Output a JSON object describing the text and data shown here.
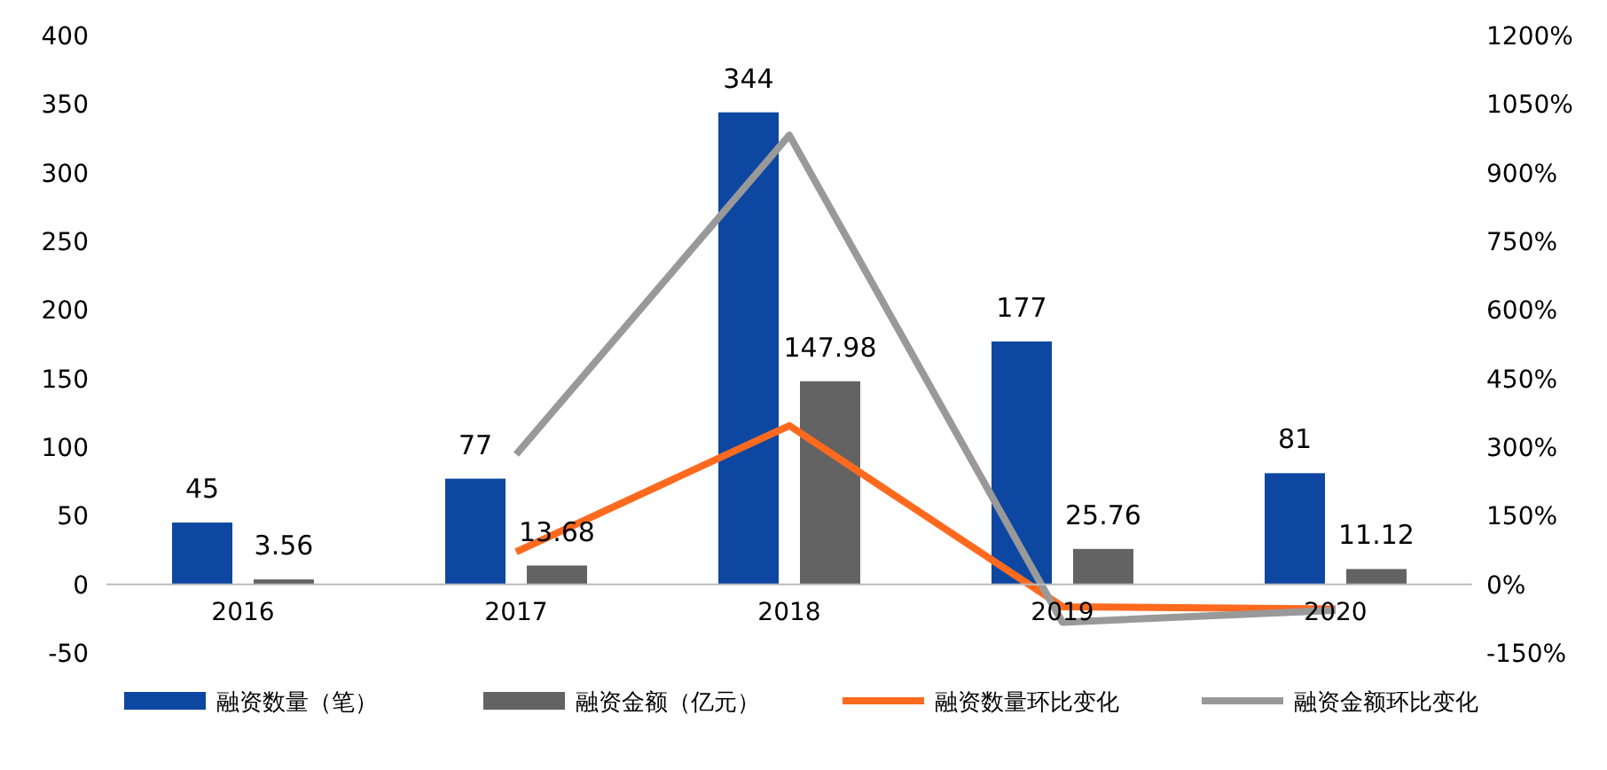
{
  "chart_data": {
    "type": "bar",
    "categories": [
      "2016",
      "2017",
      "2018",
      "2019",
      "2020"
    ],
    "series": [
      {
        "name": "融资数量（笔）",
        "color": "#0d47a1",
        "values": [
          45,
          77,
          344,
          177,
          81
        ],
        "value_labels": [
          "45",
          "77",
          "344",
          "177",
          "81"
        ]
      },
      {
        "name": "融资金额（亿元）",
        "color": "#636363",
        "values": [
          3.56,
          13.68,
          147.98,
          25.76,
          11.12
        ],
        "value_labels": [
          "3.56",
          "13.68",
          "147.98",
          "25.76",
          "11.12"
        ]
      },
      {
        "name": "融资数量环比变化",
        "type": "line",
        "axis": "y2",
        "color": "#ff6a1f",
        "values": [
          null,
          71,
          347,
          -49,
          -54
        ]
      },
      {
        "name": "融资金额环比变化",
        "type": "line",
        "axis": "y2",
        "color": "#999999",
        "values": [
          null,
          284,
          982,
          -83,
          -57
        ]
      }
    ],
    "ylim": [
      -50,
      400
    ],
    "yticks": [
      -50,
      0,
      50,
      100,
      150,
      200,
      250,
      300,
      350,
      400
    ],
    "y2lim": [
      -150,
      1200
    ],
    "y2ticks": [
      {
        "value": -150,
        "label": "-150%"
      },
      {
        "value": 0,
        "label": "0%"
      },
      {
        "value": 150,
        "label": "150%"
      },
      {
        "value": 300,
        "label": "300%"
      },
      {
        "value": 450,
        "label": "450%"
      },
      {
        "value": 600,
        "label": "600%"
      },
      {
        "value": 750,
        "label": "750%"
      },
      {
        "value": 900,
        "label": "900%"
      },
      {
        "value": 1050,
        "label": "1050%"
      },
      {
        "value": 1200,
        "label": "1200%"
      }
    ],
    "legend": "bottom",
    "grid": false,
    "marker": "none",
    "line_style": "solid"
  }
}
